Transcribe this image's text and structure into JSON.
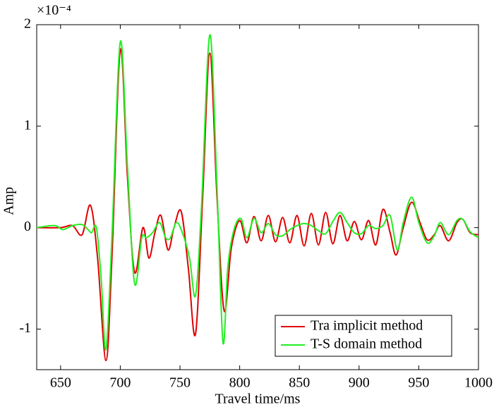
{
  "chart_data": {
    "type": "line",
    "xlabel": "Travel time/ms",
    "ylabel": "Amp",
    "y_multiplier": "×10⁻⁴",
    "xlim": [
      630,
      1000
    ],
    "xticks": [
      650,
      700,
      750,
      800,
      850,
      900,
      950,
      1000
    ],
    "ylim": [
      -1.4,
      2
    ],
    "yticks": [
      -1,
      0,
      1,
      2
    ],
    "legend_position": "lower right",
    "grid": false,
    "series": [
      {
        "name": "Tra  implicit method",
        "color": "#e00000",
        "x": [
          630,
          650,
          660,
          668,
          675,
          681,
          688,
          693,
          700,
          706,
          712,
          719,
          724,
          729,
          734,
          740,
          745,
          751,
          757,
          763,
          769,
          775,
          781,
          787,
          793,
          800,
          806,
          812,
          818,
          824,
          830,
          836,
          842,
          848,
          854,
          860,
          866,
          872,
          878,
          884,
          890,
          896,
          902,
          908,
          914,
          920,
          926,
          931,
          937,
          944,
          951,
          957,
          963,
          968,
          975,
          982,
          987,
          993,
          1000
        ],
        "values": [
          0,
          0,
          0.02,
          -0.07,
          0.22,
          -0.3,
          -1.31,
          -0.3,
          1.75,
          0.5,
          -0.44,
          0,
          -0.3,
          -0.05,
          0.12,
          -0.22,
          0,
          0.16,
          -0.4,
          -1.05,
          0.3,
          1.72,
          0.3,
          -0.82,
          -0.2,
          0.07,
          -0.15,
          0.11,
          -0.13,
          0.12,
          -0.14,
          0.1,
          -0.15,
          0.12,
          -0.18,
          0.14,
          -0.17,
          0.15,
          -0.16,
          0.12,
          -0.13,
          0.06,
          -0.12,
          0.07,
          -0.17,
          0.18,
          -0.05,
          -0.27,
          0,
          0.25,
          0.05,
          -0.12,
          -0.07,
          0.02,
          -0.13,
          0.05,
          0.08,
          -0.05,
          -0.07
        ]
      },
      {
        "name": "T-S domain method",
        "color": "#22ee22",
        "x": [
          630,
          645,
          652,
          660,
          668,
          673,
          676,
          680,
          684,
          688,
          693,
          700,
          706,
          712,
          718,
          722,
          727,
          733,
          738,
          742,
          747,
          752,
          758,
          763,
          768,
          775,
          781,
          786,
          790,
          795,
          801,
          806,
          812,
          818,
          824,
          830,
          836,
          842,
          848,
          854,
          860,
          866,
          872,
          878,
          884,
          890,
          896,
          902,
          908,
          914,
          920,
          926,
          932,
          937,
          944,
          950,
          957,
          963,
          968,
          975,
          982,
          987,
          993,
          1000
        ],
        "values": [
          0,
          0.02,
          -0.02,
          0.02,
          0.03,
          -0.02,
          -0.05,
          0,
          -0.5,
          -1.2,
          -0.1,
          1.83,
          0.6,
          -0.55,
          -0.1,
          -0.1,
          -0.05,
          0.05,
          -0.1,
          -0.1,
          0.05,
          -0.05,
          -0.3,
          -0.67,
          0.2,
          1.9,
          0.4,
          -1.13,
          -0.4,
          -0.03,
          0.09,
          -0.1,
          0.09,
          -0.05,
          0.04,
          -0.07,
          -0.08,
          -0.02,
          0.02,
          0.04,
          0.02,
          -0.03,
          -0.06,
          0.06,
          0.15,
          0.05,
          -0.05,
          -0.06,
          0.02,
          -0.01,
          0.02,
          0.12,
          -0.22,
          0.05,
          0.3,
          0.05,
          -0.15,
          -0.08,
          0.05,
          -0.07,
          0.07,
          0.08,
          -0.04,
          -0.1
        ]
      }
    ]
  }
}
